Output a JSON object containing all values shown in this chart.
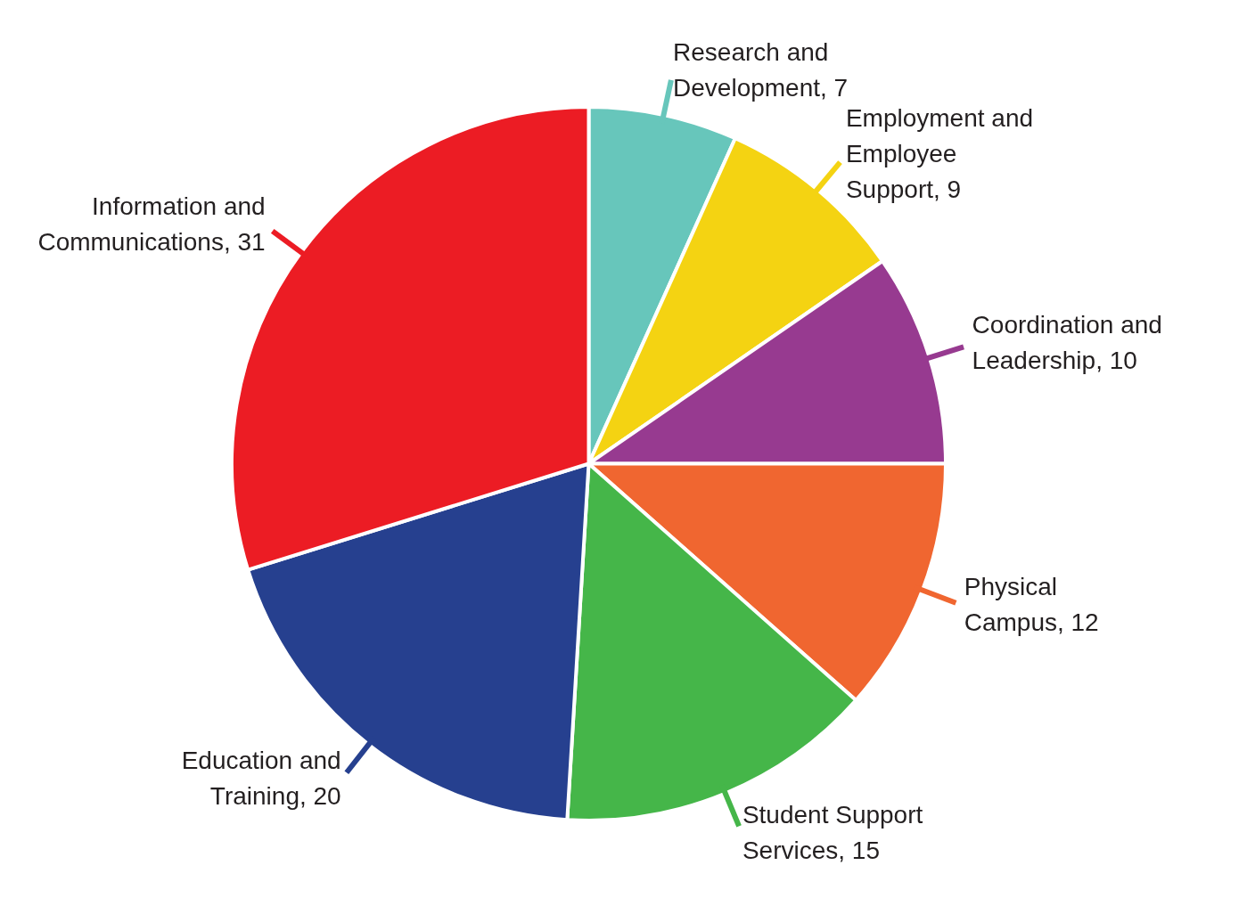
{
  "chart_data": {
    "type": "pie",
    "categories": [
      "Research and Development, 7",
      "Employment and Employee Support, 9",
      "Coordination and Leadership, 10",
      "Physical Campus, 12",
      "Student Support Services, 15",
      "Education and Training, 20",
      "Information and Communications, 31"
    ],
    "values": [
      7,
      9,
      10,
      12,
      15,
      20,
      31
    ],
    "colors": [
      "#67c6bb",
      "#f4d312",
      "#973a90",
      "#f06630",
      "#45b649",
      "#26408f",
      "#ec1c24"
    ],
    "legend": false
  }
}
